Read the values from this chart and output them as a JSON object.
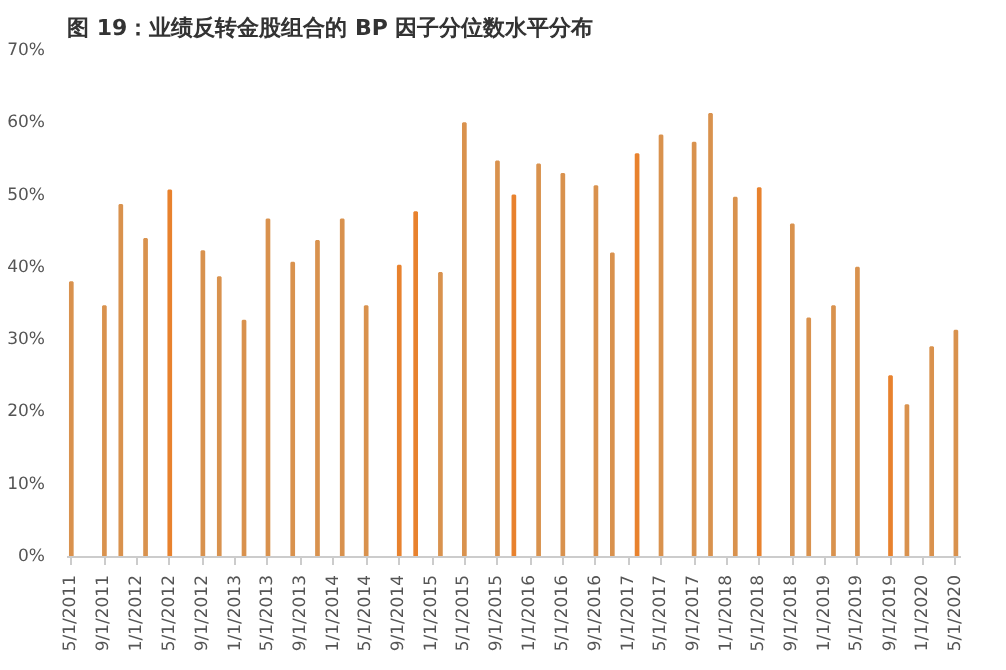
{
  "chart_data": {
    "type": "bar",
    "title": "图 19：业绩反转金股组合的 BP 因子分位数水平分布",
    "x": [
      "2011-05",
      "2011-09",
      "2011-11",
      "2012-02",
      "2012-05",
      "2012-09",
      "2012-11",
      "2013-02",
      "2013-05",
      "2013-08",
      "2013-11",
      "2014-02",
      "2014-05",
      "2014-09",
      "2014-11",
      "2015-02",
      "2015-05",
      "2015-09",
      "2015-11",
      "2016-02",
      "2016-05",
      "2016-09",
      "2016-11",
      "2017-02",
      "2017-05",
      "2017-09",
      "2017-11",
      "2018-02",
      "2018-05",
      "2018-09",
      "2018-11",
      "2019-02",
      "2019-05",
      "2019-09",
      "2019-11",
      "2020-02",
      "2020-05"
    ],
    "values": [
      38.0,
      34.7,
      48.7,
      44.0,
      50.7,
      42.3,
      38.7,
      32.7,
      46.7,
      40.7,
      43.7,
      46.7,
      34.7,
      40.3,
      47.7,
      39.3,
      60.0,
      54.7,
      50.0,
      54.3,
      53.0,
      51.3,
      42.0,
      55.7,
      58.3,
      57.3,
      61.3,
      49.7,
      51.0,
      46.0,
      33.0,
      34.7,
      40.0,
      25.0,
      21.0,
      29.0,
      31.3
    ],
    "colors": [
      "#d9924e",
      "#d9924e",
      "#d9924e",
      "#d9924e",
      "#e8822e",
      "#d9924e",
      "#d9924e",
      "#d9924e",
      "#d9924e",
      "#d9924e",
      "#d9924e",
      "#d9924e",
      "#d9924e",
      "#e8822e",
      "#e8822e",
      "#d9924e",
      "#d9924e",
      "#d9924e",
      "#e8822e",
      "#d9924e",
      "#d9924e",
      "#d9924e",
      "#d9924e",
      "#e8822e",
      "#d9924e",
      "#d9924e",
      "#d9924e",
      "#d9924e",
      "#e8822e",
      "#d9924e",
      "#d9924e",
      "#d9924e",
      "#d9924e",
      "#e8822e",
      "#d9924e",
      "#d9924e",
      "#d9924e"
    ],
    "xlim": [
      "2011-04-15",
      "2020-05-20"
    ],
    "xticks": [
      {
        "value": "2011-05-01",
        "label": "5/1/2011"
      },
      {
        "value": "2011-09-01",
        "label": "9/1/2011"
      },
      {
        "value": "2012-01-01",
        "label": "1/1/2012"
      },
      {
        "value": "2012-05-01",
        "label": "5/1/2012"
      },
      {
        "value": "2012-09-01",
        "label": "9/1/2012"
      },
      {
        "value": "2013-01-01",
        "label": "1/1/2013"
      },
      {
        "value": "2013-05-01",
        "label": "5/1/2013"
      },
      {
        "value": "2013-09-01",
        "label": "9/1/2013"
      },
      {
        "value": "2014-01-01",
        "label": "1/1/2014"
      },
      {
        "value": "2014-05-01",
        "label": "5/1/2014"
      },
      {
        "value": "2014-09-01",
        "label": "9/1/2014"
      },
      {
        "value": "2015-01-01",
        "label": "1/1/2015"
      },
      {
        "value": "2015-05-01",
        "label": "5/1/2015"
      },
      {
        "value": "2015-09-01",
        "label": "9/1/2015"
      },
      {
        "value": "2016-01-01",
        "label": "1/1/2016"
      },
      {
        "value": "2016-05-01",
        "label": "5/1/2016"
      },
      {
        "value": "2016-09-01",
        "label": "9/1/2016"
      },
      {
        "value": "2017-01-01",
        "label": "1/1/2017"
      },
      {
        "value": "2017-05-01",
        "label": "5/1/2017"
      },
      {
        "value": "2017-09-01",
        "label": "9/1/2017"
      },
      {
        "value": "2018-01-01",
        "label": "1/1/2018"
      },
      {
        "value": "2018-05-01",
        "label": "5/1/2018"
      },
      {
        "value": "2018-09-01",
        "label": "9/1/2018"
      },
      {
        "value": "2019-01-01",
        "label": "1/1/2019"
      },
      {
        "value": "2019-05-01",
        "label": "5/1/2019"
      },
      {
        "value": "2019-09-01",
        "label": "9/1/2019"
      },
      {
        "value": "2020-01-01",
        "label": "1/1/2020"
      },
      {
        "value": "2020-05-01",
        "label": "5/1/2020"
      }
    ],
    "ylim": [
      0,
      70
    ],
    "yticks": [
      {
        "value": 0,
        "label": "0%"
      },
      {
        "value": 10,
        "label": "10%"
      },
      {
        "value": 20,
        "label": "20%"
      },
      {
        "value": 30,
        "label": "30%"
      },
      {
        "value": 40,
        "label": "40%"
      },
      {
        "value": 50,
        "label": "50%"
      },
      {
        "value": 60,
        "label": "60%"
      },
      {
        "value": 70,
        "label": "70%"
      }
    ],
    "grid": false
  }
}
